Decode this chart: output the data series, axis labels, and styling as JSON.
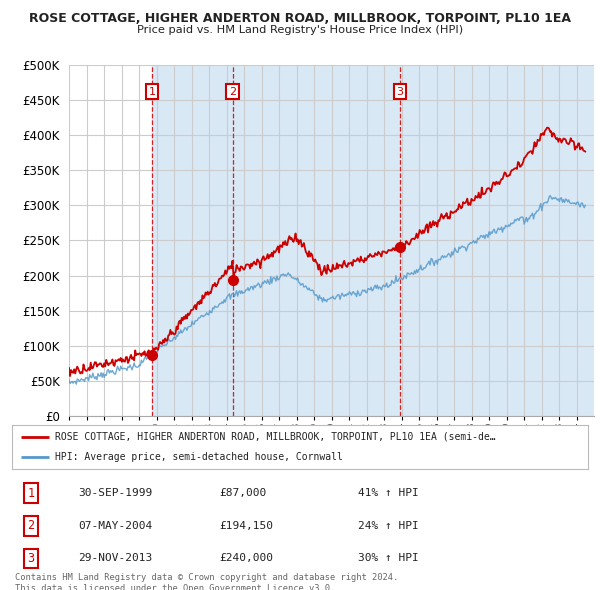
{
  "title": "ROSE COTTAGE, HIGHER ANDERTON ROAD, MILLBROOK, TORPOINT, PL10 1EA",
  "subtitle": "Price paid vs. HM Land Registry's House Price Index (HPI)",
  "legend_line1": "ROSE COTTAGE, HIGHER ANDERTON ROAD, MILLBROOK, TORPOINT, PL10 1EA (semi-de…",
  "legend_line2": "HPI: Average price, semi-detached house, Cornwall",
  "red_color": "#cc0000",
  "blue_color": "#5599cc",
  "shade_color": "#d8e8f5",
  "background_color": "#ffffff",
  "grid_color": "#cccccc",
  "purchases": [
    {
      "label": "1",
      "date_x": 1999.75,
      "price": 87000
    },
    {
      "label": "2",
      "date_x": 2004.35,
      "price": 194150
    },
    {
      "label": "3",
      "date_x": 2013.91,
      "price": 240000
    }
  ],
  "purchase_table": [
    [
      "1",
      "30-SEP-1999",
      "£87,000",
      "41% ↑ HPI"
    ],
    [
      "2",
      "07-MAY-2004",
      "£194,150",
      "24% ↑ HPI"
    ],
    [
      "3",
      "29-NOV-2013",
      "£240,000",
      "30% ↑ HPI"
    ]
  ],
  "footer": "Contains HM Land Registry data © Crown copyright and database right 2024.\nThis data is licensed under the Open Government Licence v3.0.",
  "ylim": [
    0,
    500000
  ],
  "yticks": [
    0,
    50000,
    100000,
    150000,
    200000,
    250000,
    300000,
    350000,
    400000,
    450000,
    500000
  ],
  "xmin": 1995,
  "xmax": 2025
}
